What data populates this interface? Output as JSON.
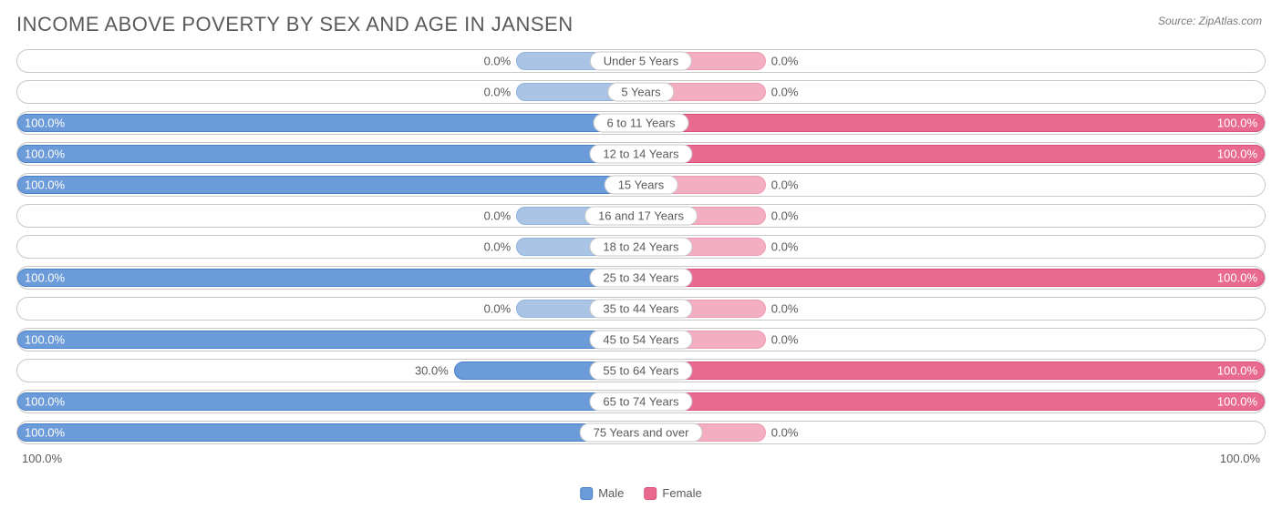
{
  "title": "INCOME ABOVE POVERTY BY SEX AND AGE IN JANSEN",
  "source": "Source: ZipAtlas.com",
  "axis": {
    "left": "100.0%",
    "right": "100.0%"
  },
  "legend": {
    "male": "Male",
    "female": "Female"
  },
  "colors": {
    "male_fill": "#6c9bd9",
    "male_border": "#4a7fc9",
    "male_zero_fill": "#aac4e6",
    "male_zero_border": "#8fb1dd",
    "female_fill": "#e86a8f",
    "female_border": "#d94f7a",
    "female_zero_fill": "#f3aec1",
    "female_zero_border": "#ee99b2",
    "row_border": "#c8c8c8",
    "text": "#5a5a5a"
  },
  "zero_bar_width_pct": 20,
  "rows": [
    {
      "label": "Under 5 Years",
      "male": 0.0,
      "female": 0.0
    },
    {
      "label": "5 Years",
      "male": 0.0,
      "female": 0.0
    },
    {
      "label": "6 to 11 Years",
      "male": 100.0,
      "female": 100.0
    },
    {
      "label": "12 to 14 Years",
      "male": 100.0,
      "female": 100.0
    },
    {
      "label": "15 Years",
      "male": 100.0,
      "female": 0.0
    },
    {
      "label": "16 and 17 Years",
      "male": 0.0,
      "female": 0.0
    },
    {
      "label": "18 to 24 Years",
      "male": 0.0,
      "female": 0.0
    },
    {
      "label": "25 to 34 Years",
      "male": 100.0,
      "female": 100.0
    },
    {
      "label": "35 to 44 Years",
      "male": 0.0,
      "female": 0.0
    },
    {
      "label": "45 to 54 Years",
      "male": 100.0,
      "female": 0.0
    },
    {
      "label": "55 to 64 Years",
      "male": 30.0,
      "female": 100.0
    },
    {
      "label": "65 to 74 Years",
      "male": 100.0,
      "female": 100.0
    },
    {
      "label": "75 Years and over",
      "male": 100.0,
      "female": 0.0
    }
  ]
}
